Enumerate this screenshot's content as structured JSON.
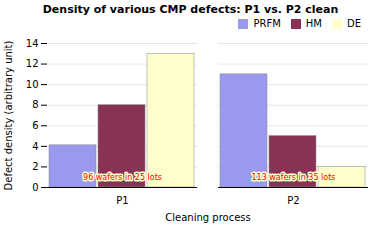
{
  "chart_data": {
    "type": "bar",
    "title": "Density of various CMP defects: P1 vs. P2 clean",
    "xlabel": "Cleaning process",
    "ylabel": "Defect density (arbitrary unit)",
    "categories": [
      "P1",
      "P2"
    ],
    "series": [
      {
        "name": "PRFM",
        "color": "#9999ee",
        "values": [
          4.1,
          11.0
        ]
      },
      {
        "name": "HM",
        "color": "#883355",
        "values": [
          8.0,
          5.0
        ]
      },
      {
        "name": "DE",
        "color": "#ffffcc",
        "values": [
          13.0,
          2.0
        ]
      }
    ],
    "ylim": [
      0,
      14
    ],
    "yticks": [
      0,
      2,
      4,
      6,
      8,
      10,
      12,
      14
    ],
    "annotations": [
      {
        "text": "96 wafers in 25 lots",
        "x": "P1"
      },
      {
        "text": "113 wafers in 35 lots",
        "x": "P2"
      }
    ],
    "grid": true,
    "legend": "upper right"
  }
}
